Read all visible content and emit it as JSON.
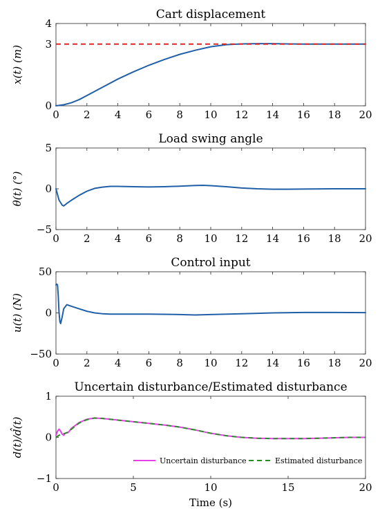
{
  "chart_data": [
    {
      "type": "line",
      "title": "Cart displacement",
      "ylabel": "x(t) (m)",
      "xlabel": "",
      "xlim": [
        0,
        20
      ],
      "ylim": [
        0,
        4
      ],
      "xticks": [
        0,
        2,
        4,
        6,
        8,
        10,
        12,
        14,
        16,
        18,
        20
      ],
      "yticks": [
        0,
        3,
        4
      ],
      "grid": false,
      "series": [
        {
          "color": "#1f5fa8",
          "style": "solid",
          "x": [
            0,
            0.5,
            1,
            1.5,
            2,
            3,
            4,
            5,
            6,
            7,
            8,
            9,
            10,
            11,
            12,
            13,
            14,
            15,
            16,
            17,
            18,
            19,
            20
          ],
          "y": [
            0,
            0.05,
            0.15,
            0.3,
            0.5,
            0.9,
            1.3,
            1.65,
            1.97,
            2.25,
            2.5,
            2.7,
            2.87,
            2.97,
            3.01,
            3.02,
            3.02,
            3.01,
            3.0,
            3.0,
            3.0,
            3.0,
            3.0
          ]
        },
        {
          "color": "#e8201f",
          "style": "dashed",
          "x": [
            0,
            20
          ],
          "y": [
            3,
            3
          ]
        }
      ]
    },
    {
      "type": "line",
      "title": "Load swing angle",
      "ylabel": "θ(t) (°)",
      "xlabel": "",
      "xlim": [
        0,
        20
      ],
      "ylim": [
        -5,
        5
      ],
      "xticks": [
        0,
        2,
        4,
        6,
        8,
        10,
        12,
        14,
        16,
        18,
        20
      ],
      "yticks": [
        -5,
        0,
        5
      ],
      "grid": false,
      "series": [
        {
          "color": "#1f5fa8",
          "style": "solid",
          "x": [
            0,
            0.2,
            0.4,
            0.5,
            0.7,
            1,
            1.5,
            2,
            2.5,
            3,
            3.5,
            4,
            5,
            6,
            7,
            8,
            9,
            9.5,
            10,
            11,
            12,
            13,
            14,
            15,
            16,
            18,
            20
          ],
          "y": [
            0,
            -1.4,
            -2.0,
            -2.1,
            -1.8,
            -1.4,
            -0.8,
            -0.3,
            0.05,
            0.2,
            0.3,
            0.3,
            0.25,
            0.22,
            0.25,
            0.32,
            0.4,
            0.42,
            0.38,
            0.25,
            0.1,
            0.0,
            -0.05,
            -0.05,
            -0.03,
            0.0,
            0.0
          ]
        }
      ]
    },
    {
      "type": "line",
      "title": "Control input",
      "ylabel": "u(t) (N)",
      "xlabel": "",
      "xlim": [
        0,
        20
      ],
      "ylim": [
        -50,
        50
      ],
      "xticks": [
        0,
        2,
        4,
        6,
        8,
        10,
        12,
        14,
        16,
        18,
        20
      ],
      "yticks": [
        -50,
        0,
        50
      ],
      "grid": false,
      "series": [
        {
          "color": "#1f5fa8",
          "style": "solid",
          "x": [
            0,
            0.05,
            0.1,
            0.15,
            0.2,
            0.25,
            0.3,
            0.4,
            0.5,
            0.7,
            1,
            1.5,
            2,
            2.5,
            3,
            3.5,
            4,
            6,
            8,
            9,
            10,
            12,
            14,
            16,
            18,
            20
          ],
          "y": [
            34,
            35,
            34,
            20,
            0,
            -10,
            -13,
            -5,
            5,
            10,
            8,
            5,
            2,
            0,
            -1,
            -1.5,
            -1.5,
            -1.5,
            -2,
            -2.5,
            -2,
            -1,
            0,
            0.5,
            0.5,
            0.3
          ]
        }
      ]
    },
    {
      "type": "line",
      "title": "Uncertain disturbance/Estimated disturbance",
      "ylabel": "d(t)/d̂(t)",
      "xlabel": "Time (s)",
      "xlim": [
        0,
        20
      ],
      "ylim": [
        -1,
        1
      ],
      "xticks": [
        0,
        5,
        10,
        15,
        20
      ],
      "yticks": [
        -1,
        0,
        1
      ],
      "grid": false,
      "legend": "bottom-right",
      "series": [
        {
          "name": "Uncertain disturbance",
          "color": "#e83ee8",
          "style": "solid",
          "x": [
            0,
            0.1,
            0.2,
            0.3,
            0.4,
            0.5,
            0.6,
            0.8,
            1,
            1.5,
            2,
            2.5,
            3,
            4,
            5,
            6,
            7,
            8,
            9,
            10,
            11,
            12,
            13,
            14,
            15,
            16,
            17,
            18,
            19,
            20
          ],
          "y": [
            0.05,
            0.15,
            0.2,
            0.15,
            0.08,
            0.05,
            0.1,
            0.12,
            0.22,
            0.36,
            0.44,
            0.47,
            0.46,
            0.42,
            0.38,
            0.34,
            0.3,
            0.25,
            0.18,
            0.1,
            0.04,
            0.0,
            -0.02,
            -0.03,
            -0.03,
            -0.03,
            -0.02,
            -0.01,
            0.0,
            0.0
          ]
        },
        {
          "name": "Estimated disturbance",
          "color": "#2a8a2a",
          "style": "dashed",
          "x": [
            0,
            0.2,
            0.4,
            0.6,
            0.8,
            1,
            1.5,
            2,
            2.5,
            3,
            4,
            5,
            6,
            7,
            8,
            9,
            10,
            11,
            12,
            13,
            14,
            15,
            16,
            17,
            18,
            19,
            20
          ],
          "y": [
            0.0,
            0.05,
            0.08,
            0.1,
            0.13,
            0.2,
            0.35,
            0.43,
            0.47,
            0.46,
            0.42,
            0.38,
            0.34,
            0.3,
            0.25,
            0.18,
            0.1,
            0.04,
            0.0,
            -0.02,
            -0.03,
            -0.03,
            -0.03,
            -0.02,
            -0.01,
            0.0,
            0.0
          ]
        }
      ]
    }
  ]
}
